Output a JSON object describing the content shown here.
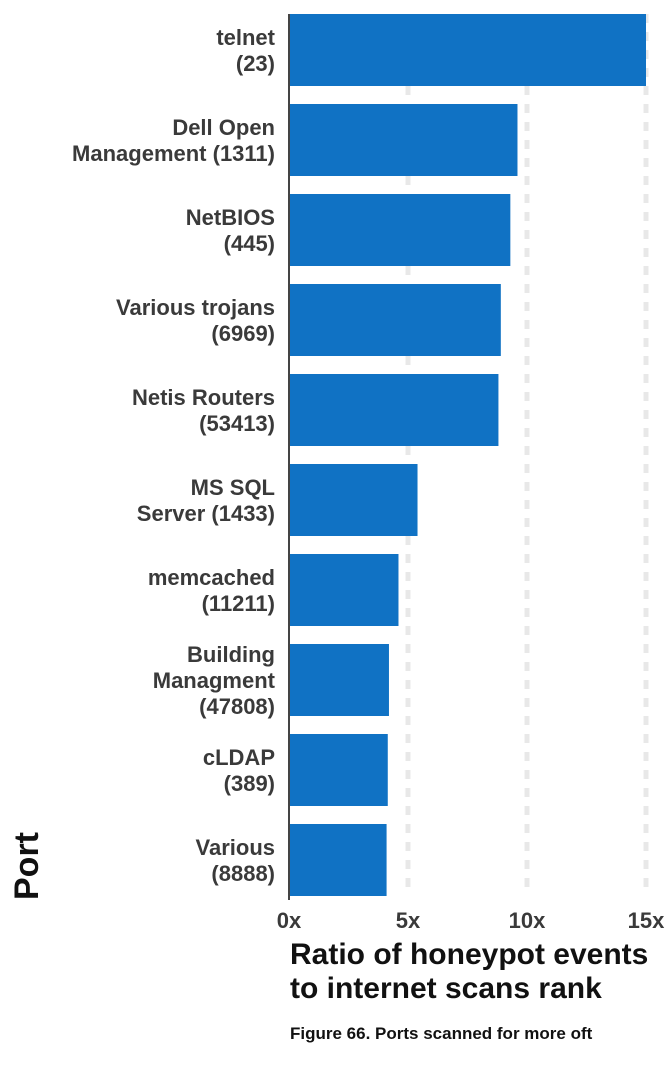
{
  "chart_data": {
    "type": "bar",
    "orientation": "horizontal",
    "categories": [
      [
        "telnet",
        "(23)"
      ],
      [
        "Dell Open",
        "Management (1311)"
      ],
      [
        "NetBIOS",
        "(445)"
      ],
      [
        "Various trojans",
        "(6969)"
      ],
      [
        "Netis Routers",
        "(53413)"
      ],
      [
        "MS SQL",
        "Server (1433)"
      ],
      [
        "memcached",
        "(11211)"
      ],
      [
        "Building",
        "Managment",
        "(47808)"
      ],
      [
        "cLDAP",
        "(389)"
      ],
      [
        "Various",
        "(8888)"
      ]
    ],
    "values": [
      15.0,
      9.6,
      9.3,
      8.9,
      8.8,
      5.4,
      4.6,
      4.2,
      4.15,
      4.1
    ],
    "xlabel": "Ratio of honeypot events to internet scans rank",
    "xlabel_lines": [
      "Ratio of honeypot events",
      "to internet scans rank"
    ],
    "ylabel": "Port",
    "xticks": [
      "0x",
      "5x",
      "10x",
      "15x"
    ],
    "xtick_values": [
      0,
      5,
      10,
      15
    ],
    "xlim": [
      0,
      15
    ],
    "grid": "vertical dashed",
    "bar_color": "#1072c4"
  },
  "caption": "Figure 66. Ports scanned for more oft"
}
